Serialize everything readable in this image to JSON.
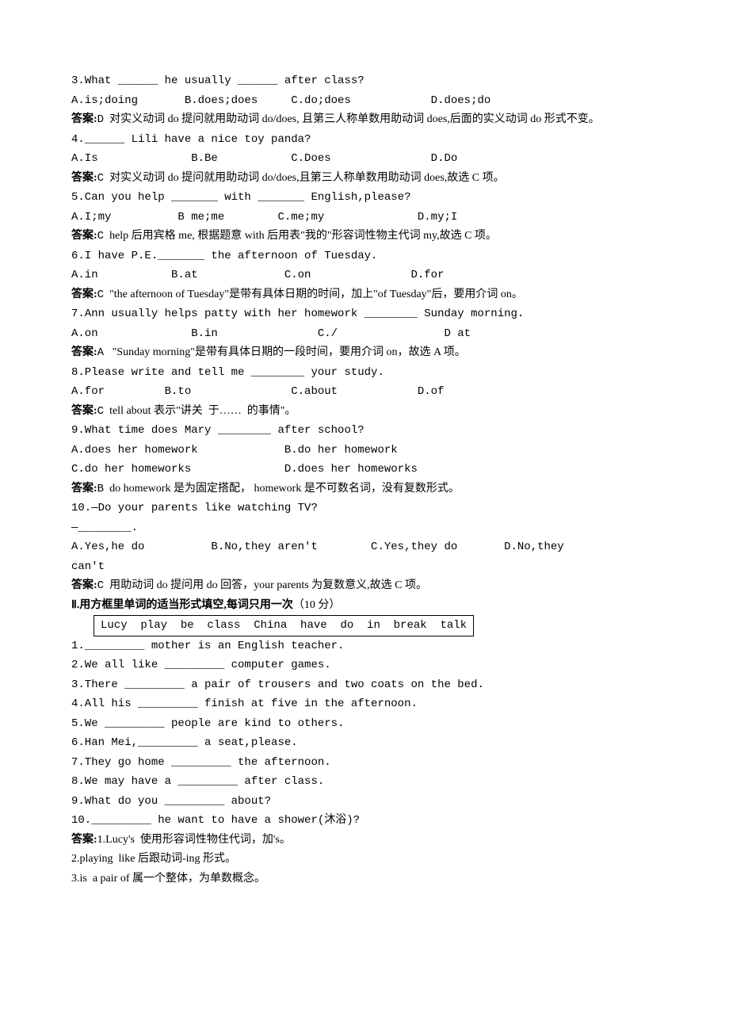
{
  "q3": {
    "stem": "3.What ______ he usually ______ after class?",
    "opts": "A.is;doing       B.does;does     C.do;does            D.does;do",
    "ans_label": "答案:",
    "ans_letter": "D",
    "ans_text": "  对实义动词 do 提问就用助动词 do/does, 且第三人称单数用助动词 does,后面的实义动词 do 形式不变。"
  },
  "q4": {
    "stem": "4.______ Lili have a nice toy panda?",
    "opts": "A.Is              B.Be           C.Does               D.Do",
    "ans_label": "答案:",
    "ans_letter": "C",
    "ans_text": "  对实义动词 do 提问就用助动词 do/does,且第三人称单数用助动词 does,故选 C 项。"
  },
  "q5": {
    "stem": "5.Can you help _______ with _______ English,please?",
    "opts": "A.I;my          B me;me        C.me;my              D.my;I",
    "ans_label": "答案:",
    "ans_letter": "C",
    "ans_text": "  help 后用宾格 me, 根据题意 with 后用表\"我的\"形容词性物主代词 my,故选 C 项。"
  },
  "q6": {
    "stem": "6.I have P.E._______ the afternoon of Tuesday.",
    "opts": "A.in           B.at             C.on               D.for",
    "ans_label": "答案:",
    "ans_letter": "C",
    "ans_text": "  \"the afternoon of Tuesday\"是带有具体日期的时间，加上\"of Tuesday\"后，要用介词 on。"
  },
  "q7": {
    "stem": "7.Ann usually helps patty with her homework ________ Sunday morning.",
    "opts": "A.on              B.in               C./                D at",
    "ans_label": "答案:",
    "ans_letter": "A",
    "ans_text": "   \"Sunday morning\"是带有具体日期的一段时间，要用介词 on，故选 A 项。"
  },
  "q8": {
    "stem": "8.Please write and tell me ________ your study.",
    "opts": "A.for         B.to               C.about            D.of",
    "ans_label": "答案:",
    "ans_letter": "C",
    "ans_text": "  tell about 表示\"讲关  于……  的事情\"。"
  },
  "q9": {
    "stem": "9.What time does Mary ________ after school?",
    "opts1": "A.does her homework             B.do her homework",
    "opts2": "C.do her homeworks              D.does her homeworks",
    "ans_label": "答案:",
    "ans_letter": "B",
    "ans_text": "  do homework 是为固定搭配， homework 是不可数名词，没有复数形式。"
  },
  "q10": {
    "stem1": "10.—Do your parents like watching TV?",
    "stem2": "—________.",
    "opts1": "A.Yes,he do          B.No,they aren't        C.Yes,they do       D.No,they",
    "opts2": "can't",
    "ans_label": "答案:",
    "ans_letter": "C",
    "ans_text": "  用助动词 do 提问用 do 回答，your parents 为复数意义,故选 C 项。"
  },
  "section2": {
    "title": "Ⅱ.用方框里单词的适当形式填空,每词只用一次",
    "points": "（10 分）",
    "box": "Lucy  play  be  class  China  have  do  in  break  talk",
    "items": [
      "1._________ mother is an English teacher.",
      "2.We all like _________ computer games.",
      "3.There _________ a pair of trousers and two coats on the bed.",
      "4.All his _________ finish at five in the afternoon.",
      "5.We _________ people are kind to others.",
      "6.Han Mei,_________ a seat,please.",
      "7.They go home _________ the afternoon.",
      "8.We may have a _________ after class.",
      "9.What do you _________ about?",
      "10._________ he want to have a shower(沐浴)?"
    ],
    "ans_label": "答案:",
    "answers": [
      "1.Lucy's  使用形容词性物住代词，加's。",
      "2.playing  like 后跟动词-ing 形式。",
      "3.is  a pair of 属一个整体，为单数概念。"
    ]
  }
}
